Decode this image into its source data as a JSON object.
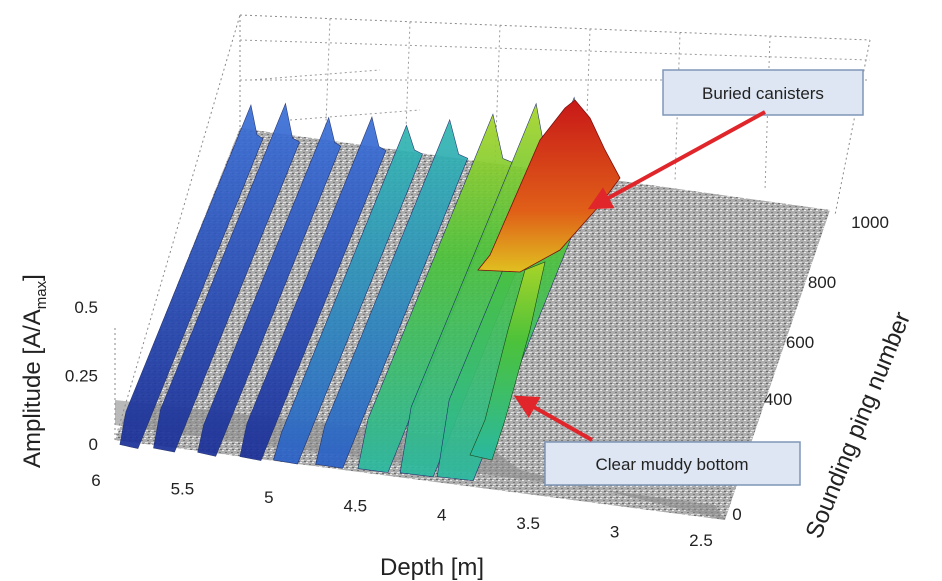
{
  "chart_data": {
    "type": "surface",
    "title": "",
    "xlabel": "Depth [m]",
    "ylabel": "Sounding ping number",
    "zlabel_main": "Amplitude  [A/A",
    "zlabel_sub": "max",
    "zlabel_end": "]",
    "x_ticks": [
      "6",
      "5.5",
      "5",
      "4.5",
      "4",
      "3.5",
      "3",
      "2.5"
    ],
    "y_ticks": [
      "0",
      "400",
      "600",
      "800",
      "1000"
    ],
    "z_ticks": [
      "0",
      "0.25",
      "0.5"
    ],
    "xlim": [
      2.5,
      6
    ],
    "ylim": [
      0,
      1000
    ],
    "zlim": [
      0,
      0.5
    ],
    "grid": true,
    "colormap": [
      "#1f3fb0",
      "#2f8fd0",
      "#2ab8a0",
      "#4cc23a",
      "#b8d420",
      "#e0a020",
      "#d8281e"
    ],
    "noise_color": "#9a9a9a",
    "annotations": [
      {
        "text": "Buried canisters"
      },
      {
        "text": "Clear muddy bottom"
      }
    ],
    "arrow_color": "#e0262b"
  }
}
